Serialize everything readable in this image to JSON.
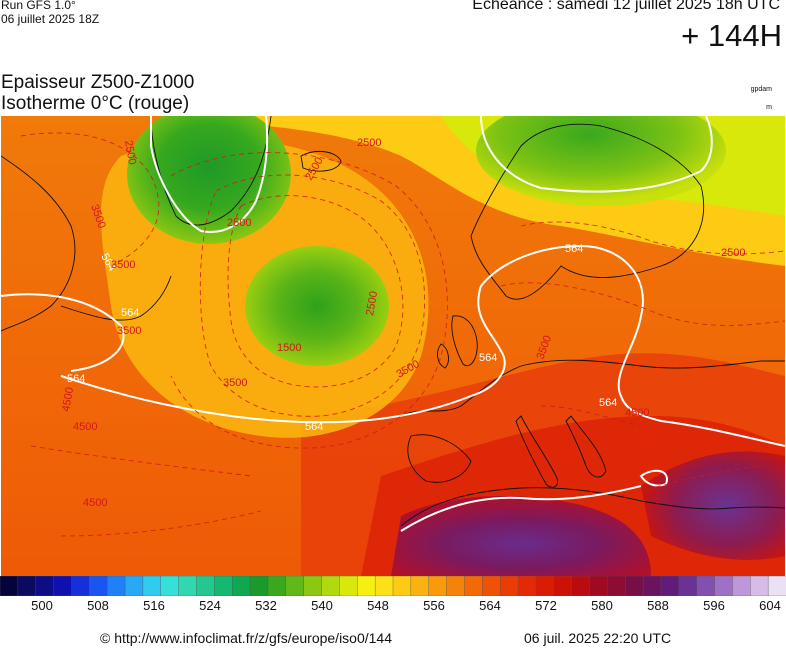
{
  "header": {
    "run_label": "Run GFS 1.0°",
    "run_date": "06 juillet 2025 18Z",
    "echeance": "Echéance : samedi 12 juillet 2025 18h UTC",
    "lead_time": "+ 144H"
  },
  "titles": {
    "line1": "Epaisseur Z500-Z1000",
    "line2": "Isotherme 0°C (rouge)",
    "unit_thickness": "gpdam",
    "unit_isotherm": "m"
  },
  "map": {
    "description_region": "Europe / North Atlantic",
    "thickness_contour_labels": [
      "564",
      "564",
      "564",
      "564",
      "564",
      "564",
      "564"
    ],
    "isotherm_labels": [
      "2500",
      "2500",
      "2500",
      "2500",
      "2500",
      "2500",
      "3500",
      "3500",
      "3500",
      "3500",
      "3500",
      "3500",
      "4500",
      "4500",
      "4500",
      "4500",
      "1500"
    ]
  },
  "colorbar": {
    "colors": [
      "#05033a",
      "#0a0a60",
      "#0d0d86",
      "#1010b0",
      "#1530d8",
      "#1a55f0",
      "#2080f5",
      "#28a8f5",
      "#30ccf0",
      "#35e0d8",
      "#30d8b0",
      "#22c890",
      "#14b870",
      "#0ea850",
      "#1a9a2a",
      "#3aa81e",
      "#62b818",
      "#8cc812",
      "#b2d80e",
      "#d8e80a",
      "#f5f010",
      "#fde018",
      "#fdca14",
      "#fbb210",
      "#f89a0c",
      "#f5820a",
      "#f26a08",
      "#ee5206",
      "#ea3c05",
      "#e42a04",
      "#da1c04",
      "#cc1206",
      "#b80c10",
      "#a00a20",
      "#8c0c34",
      "#780e48",
      "#6a1460",
      "#601c78",
      "#6a3294",
      "#8250ae",
      "#a070c6",
      "#be96da",
      "#d8bce8",
      "#ece0f4"
    ],
    "tick_labels": [
      "500",
      "508",
      "516",
      "524",
      "532",
      "540",
      "548",
      "556",
      "564",
      "572",
      "580",
      "588",
      "596",
      "604"
    ]
  },
  "footer": {
    "url": "© http://www.infoclimat.fr/z/gfs/europe/iso0/144",
    "generated": "06 juil. 2025 22:20 UTC"
  }
}
